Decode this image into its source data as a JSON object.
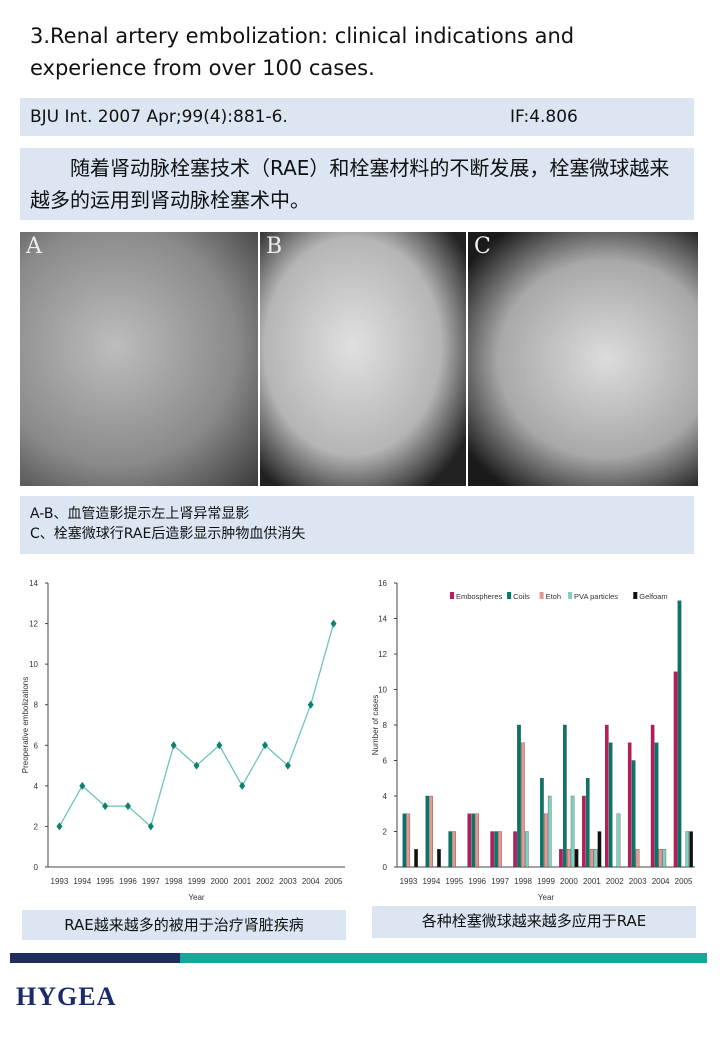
{
  "title": "3.Renal artery embolization: clinical indications and experience from over 100 cases.",
  "citation": {
    "journal": "BJU Int. 2007 Apr;99(4):881-6.",
    "impact": "IF:4.806"
  },
  "intro": "随着肾动脉栓塞技术（RAE）和栓塞材料的不断发展，栓塞微球越来越多的运用到肾动脉栓塞术中。",
  "images": [
    {
      "label": "A"
    },
    {
      "label": "B"
    },
    {
      "label": "C"
    }
  ],
  "image_caption": [
    "A-B、血管造影提示左上肾异常显影",
    "C、栓塞微球行RAE后造影显示肿物血供消失"
  ],
  "chart_captions": [
    "RAE越来越多的被用于治疗肾脏疾病",
    "各种栓塞微球越来越多应用于RAE"
  ],
  "footer": {
    "logo": "HYGEA",
    "colors": {
      "navy": "#1f2d5c",
      "teal": "#19a59a"
    }
  },
  "chart_data": [
    {
      "type": "line",
      "xlabel": "Year",
      "ylabel": "Preoperative embolizations",
      "ylim": [
        0,
        14
      ],
      "yticks": [
        0,
        2,
        4,
        6,
        8,
        10,
        12,
        14
      ],
      "categories": [
        "1993",
        "1994",
        "1995",
        "1996",
        "1997",
        "1998",
        "1999",
        "2000",
        "2001",
        "2002",
        "2003",
        "2004",
        "2005"
      ],
      "values": [
        2,
        4,
        3,
        3,
        2,
        6,
        5,
        6,
        4,
        6,
        5,
        8,
        12
      ],
      "color": "#6cc4b8",
      "marker_color": "#0e8070",
      "grid": false
    },
    {
      "type": "bar",
      "xlabel": "Year",
      "ylabel": "Number of cases",
      "ylim": [
        0,
        16
      ],
      "yticks": [
        0,
        2,
        4,
        6,
        8,
        10,
        12,
        14,
        16
      ],
      "legend": "top",
      "grid": false,
      "categories": [
        "1993",
        "1994",
        "1995",
        "1996",
        "1997",
        "1998",
        "1999",
        "2000",
        "2001",
        "2002",
        "2003",
        "2004",
        "2005"
      ],
      "series": [
        {
          "name": "Embospheres",
          "color": "#c2185b",
          "values": [
            0,
            0,
            0,
            3,
            2,
            2,
            0,
            1,
            4,
            8,
            7,
            8,
            11
          ]
        },
        {
          "name": "Coils",
          "color": "#00796b",
          "values": [
            3,
            4,
            2,
            3,
            2,
            8,
            5,
            8,
            5,
            7,
            6,
            7,
            15
          ]
        },
        {
          "name": "Etoh",
          "color": "#e8968f",
          "values": [
            3,
            4,
            2,
            3,
            2,
            7,
            3,
            1,
            1,
            0,
            1,
            1,
            0
          ]
        },
        {
          "name": "PVA particles",
          "color": "#7fd1c1",
          "values": [
            0,
            0,
            0,
            0,
            0,
            2,
            4,
            4,
            1,
            3,
            0,
            1,
            2
          ]
        },
        {
          "name": "Gelfoam",
          "color": "#111111",
          "values": [
            1,
            1,
            0,
            0,
            0,
            0,
            0,
            1,
            2,
            0,
            0,
            0,
            2
          ]
        }
      ]
    }
  ]
}
